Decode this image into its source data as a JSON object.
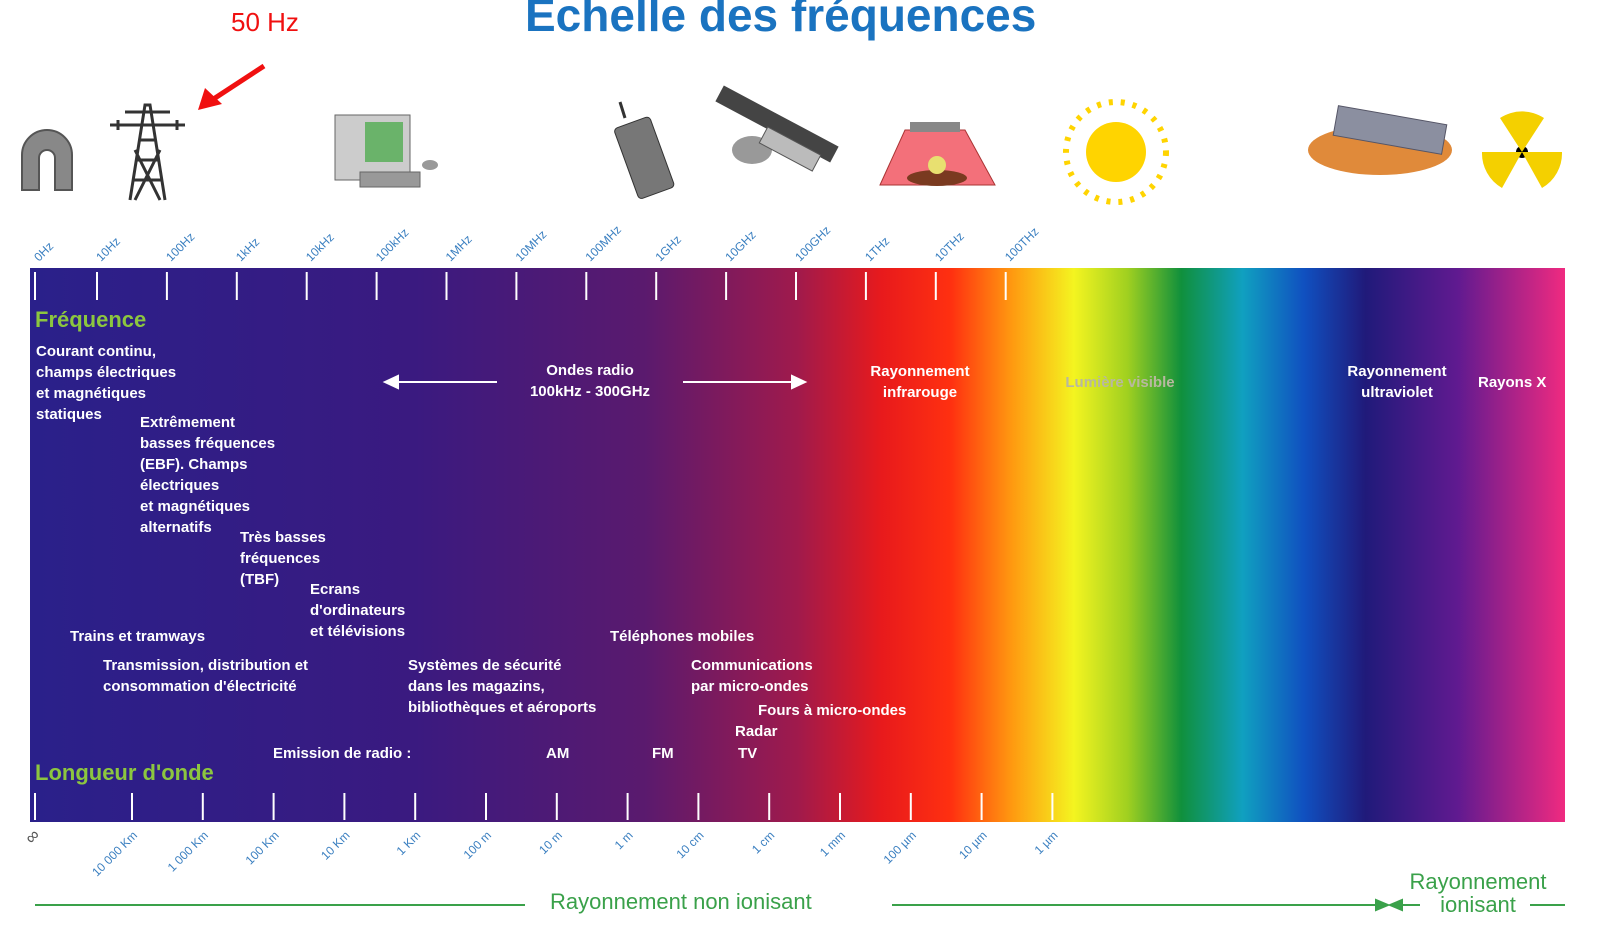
{
  "title": "Echelle des fréquences",
  "annotation": "50 Hz",
  "frequency_heading": "Fréquence",
  "wavelength_heading": "Longueur d'onde",
  "frequency_ticks": [
    "0Hz",
    "10Hz",
    "100Hz",
    "1kHz",
    "10kHz",
    "100kHz",
    "1MHz",
    "10MHz",
    "100MHz",
    "1GHz",
    "10GHz",
    "100GHz",
    "1THz",
    "10THz",
    "100THz"
  ],
  "wavelength_ticks": [
    "∞",
    "10 000 Km",
    "1 000 Km",
    "100 Km",
    "10 Km",
    "1 Km",
    "100 m",
    "10 m",
    "1 m",
    "10 cm",
    "1 cm",
    "1 mm",
    "100 µm",
    "10 µm",
    "1 µm"
  ],
  "bands": [
    "Courant continu,\nchamps électriques\net magnétiques\nstatiques",
    "Extrêmement\nbasses fréquences\n(EBF). Champs\nélectriques\net magnétiques\nalternatifs",
    "Très basses\nfréquences\n(TBF)",
    "Ecrans\nd'ordinateurs\net télévisions",
    "Ondes radio\n100kHz - 300GHz",
    "Rayonnement\ninfrarouge",
    "Lumière visible",
    "Rayonnement\nultraviolet",
    "Rayons X",
    "Trains et tramways",
    "Transmission, distribution et\nconsommation d'électricité",
    "Systèmes de sécurité\ndans les magazins,\nbibliothèques et aéroports",
    "Téléphones mobiles",
    "Communications\npar micro-ondes",
    "Fours à micro-ondes",
    "Radar",
    "Emission de radio :",
    "AM",
    "FM",
    "TV"
  ],
  "footer": {
    "non_ionizing": "Rayonnement non ionisant",
    "ionizing": "Rayonnement\nionisant"
  }
}
